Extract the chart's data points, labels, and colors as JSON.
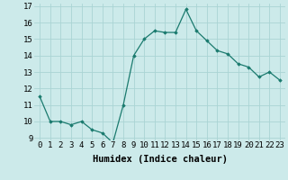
{
  "x": [
    0,
    1,
    2,
    3,
    4,
    5,
    6,
    7,
    8,
    9,
    10,
    11,
    12,
    13,
    14,
    15,
    16,
    17,
    18,
    19,
    20,
    21,
    22,
    23
  ],
  "y": [
    11.5,
    10.0,
    10.0,
    9.8,
    10.0,
    9.5,
    9.3,
    8.7,
    11.0,
    14.0,
    15.0,
    15.5,
    15.4,
    15.4,
    16.8,
    15.5,
    14.9,
    14.3,
    14.1,
    13.5,
    13.3,
    12.7,
    13.0,
    12.5
  ],
  "xlabel": "Humidex (Indice chaleur)",
  "ylim": [
    9,
    17
  ],
  "xlim": [
    -0.5,
    23.5
  ],
  "yticks": [
    9,
    10,
    11,
    12,
    13,
    14,
    15,
    16,
    17
  ],
  "xticks": [
    0,
    1,
    2,
    3,
    4,
    5,
    6,
    7,
    8,
    9,
    10,
    11,
    12,
    13,
    14,
    15,
    16,
    17,
    18,
    19,
    20,
    21,
    22,
    23
  ],
  "line_color": "#1a7a6e",
  "marker": "D",
  "marker_size": 1.8,
  "bg_color": "#cceaea",
  "grid_color": "#aad4d4",
  "xlabel_fontsize": 7.5,
  "tick_fontsize": 6.5,
  "linewidth": 0.9
}
